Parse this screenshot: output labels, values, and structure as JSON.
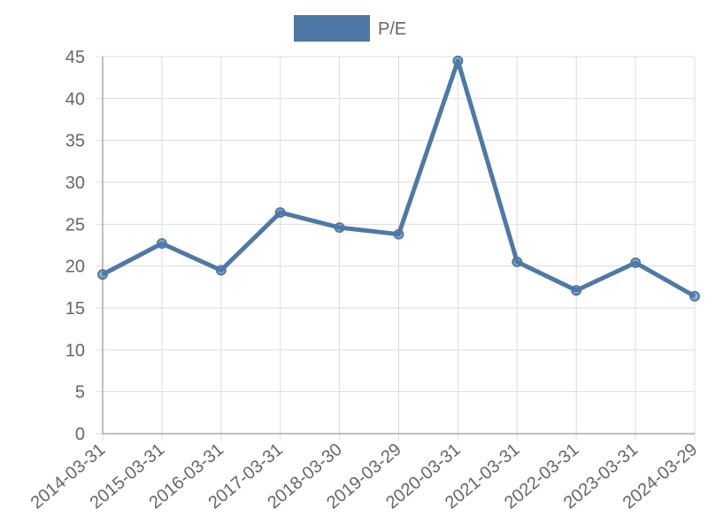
{
  "chart_data": {
    "type": "line",
    "categories": [
      "2014-03-31",
      "2015-03-31",
      "2016-03-31",
      "2017-03-31",
      "2018-03-30",
      "2019-03-29",
      "2020-03-31",
      "2021-03-31",
      "2022-03-31",
      "2023-03-31",
      "2024-03-29"
    ],
    "series": [
      {
        "name": "P/E",
        "color": "#4e79a7",
        "values": [
          19.0,
          22.7,
          19.5,
          26.4,
          24.6,
          23.8,
          44.5,
          20.5,
          17.1,
          20.4,
          16.4
        ]
      }
    ],
    "ylim": [
      0,
      45
    ],
    "yticks": [
      0,
      5,
      10,
      15,
      20,
      25,
      30,
      35,
      40,
      45
    ],
    "grid": true,
    "legend": "top"
  }
}
